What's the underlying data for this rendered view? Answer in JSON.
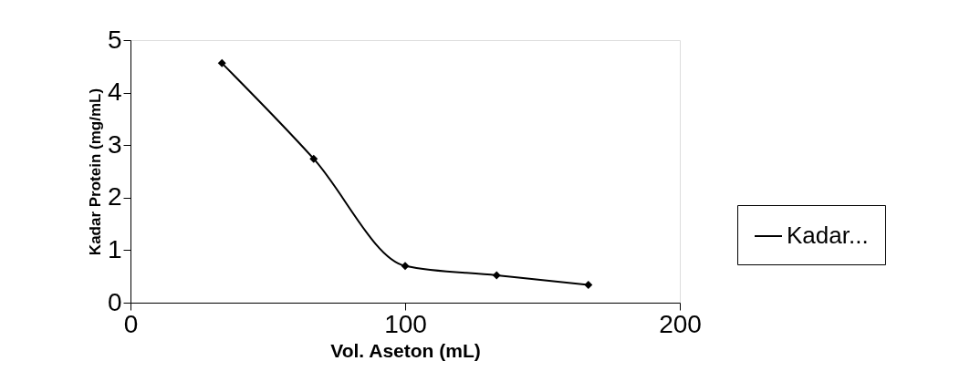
{
  "chart_data": {
    "type": "line",
    "xlabel": "Vol. Aseton (mL)",
    "ylabel": "Kadar Protein (mg/mL)",
    "x": [
      33.3,
      66.7,
      100,
      133.3,
      166.7
    ],
    "series": [
      {
        "name": "Kadar...",
        "color": "#000000",
        "values": [
          4.56,
          2.74,
          0.7,
          0.52,
          0.34
        ]
      }
    ],
    "xlim": [
      0,
      200
    ],
    "xticks": [
      0,
      100,
      200
    ],
    "ylim": [
      0,
      5
    ],
    "yticks": [
      0,
      1,
      2,
      3,
      4,
      5
    ],
    "grid": false,
    "legend": "right",
    "marker": "diamond",
    "line_style": "solid"
  }
}
